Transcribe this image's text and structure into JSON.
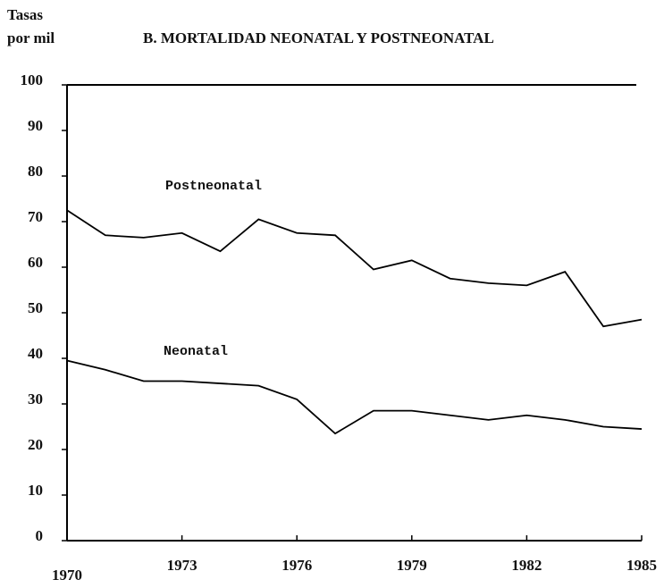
{
  "chart_data": {
    "type": "line",
    "title": "B. MORTALIDAD NEONATAL Y POSTNEONATAL",
    "ylabel": [
      "Tasas",
      "por mil"
    ],
    "x": [
      1970,
      1971,
      1972,
      1973,
      1974,
      1975,
      1976,
      1977,
      1978,
      1979,
      1980,
      1981,
      1982,
      1983,
      1984,
      1985
    ],
    "xlim": [
      1970,
      1985
    ],
    "xticks": [
      1970,
      1973,
      1976,
      1979,
      1982,
      1985
    ],
    "ylim": [
      0,
      100
    ],
    "yticks": [
      0,
      10,
      20,
      30,
      40,
      50,
      60,
      70,
      80,
      90,
      100
    ],
    "grid": false,
    "series": [
      {
        "name": "Postneonatal",
        "color": "#000000",
        "values": [
          72.5,
          67,
          66.5,
          67.5,
          63.5,
          70.5,
          67.5,
          67,
          59.5,
          61.5,
          57.5,
          56.5,
          56,
          59,
          47,
          48.5
        ]
      },
      {
        "name": "Neonatal",
        "color": "#000000",
        "values": [
          39.5,
          37.5,
          35,
          35,
          34.5,
          34,
          31,
          23.5,
          28.5,
          28.5,
          27.5,
          26.5,
          27.5,
          26.5,
          25,
          24.5
        ]
      }
    ]
  }
}
